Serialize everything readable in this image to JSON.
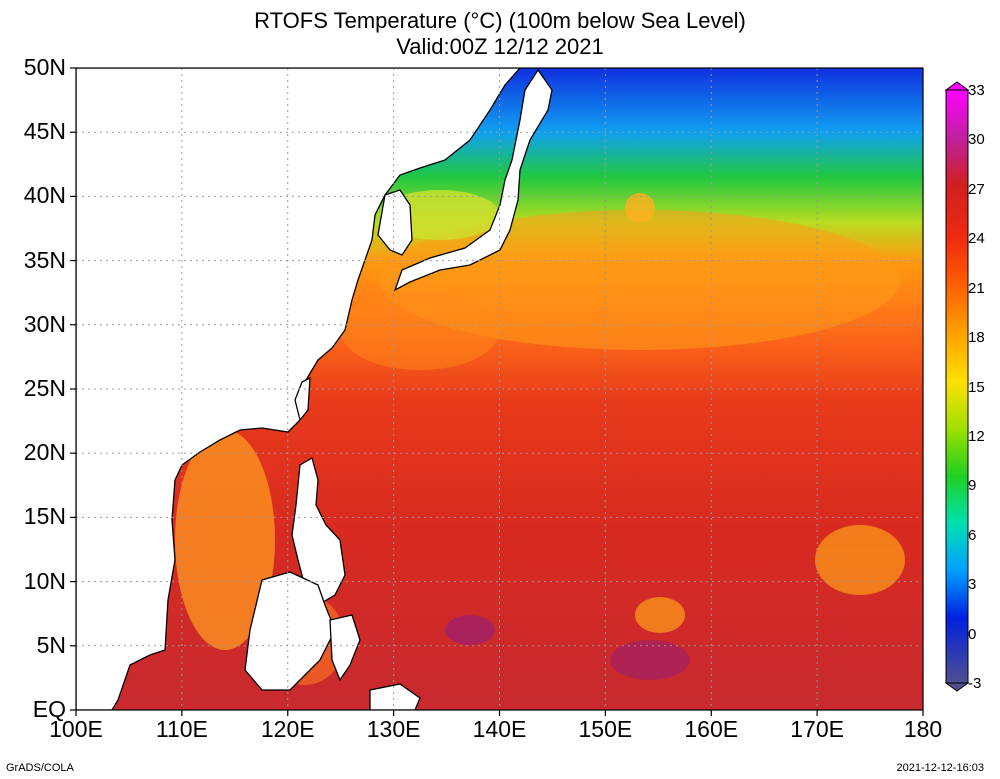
{
  "title_line1": "RTOFS Temperature (°C) (100m below Sea Level)",
  "title_line2": "Valid:00Z 12/12 2021",
  "footer_left": "GrADS/COLA",
  "footer_right": "2021-12-12-16:03",
  "map": {
    "lon_range": [
      100,
      180
    ],
    "lat_range": [
      0,
      50
    ],
    "lat_ticks": [
      {
        "value": 50,
        "label": "50N"
      },
      {
        "value": 45,
        "label": "45N"
      },
      {
        "value": 40,
        "label": "40N"
      },
      {
        "value": 35,
        "label": "35N"
      },
      {
        "value": 30,
        "label": "30N"
      },
      {
        "value": 25,
        "label": "25N"
      },
      {
        "value": 20,
        "label": "20N"
      },
      {
        "value": 15,
        "label": "15N"
      },
      {
        "value": 10,
        "label": "10N"
      },
      {
        "value": 5,
        "label": "5N"
      },
      {
        "value": 0,
        "label": "EQ"
      }
    ],
    "lon_ticks": [
      {
        "value": 100,
        "label": "100E"
      },
      {
        "value": 110,
        "label": "110E"
      },
      {
        "value": 120,
        "label": "120E"
      },
      {
        "value": 130,
        "label": "130E"
      },
      {
        "value": 140,
        "label": "140E"
      },
      {
        "value": 150,
        "label": "150E"
      },
      {
        "value": 160,
        "label": "160E"
      },
      {
        "value": 170,
        "label": "170E"
      },
      {
        "value": 180,
        "label": "180"
      }
    ],
    "grid": true
  },
  "colorbar": {
    "labels": [
      "33",
      "30",
      "27",
      "24",
      "21",
      "18",
      "15",
      "12",
      "9",
      "6",
      "3",
      "0",
      "-3"
    ],
    "colors": [
      "#e000e0",
      "#c0209a",
      "#d02020",
      "#f02a10",
      "#ff5a00",
      "#ff9a00",
      "#ffd800",
      "#b8e000",
      "#20d020",
      "#00e0a0",
      "#00a0ff",
      "#0020e0",
      "#505090"
    ]
  }
}
